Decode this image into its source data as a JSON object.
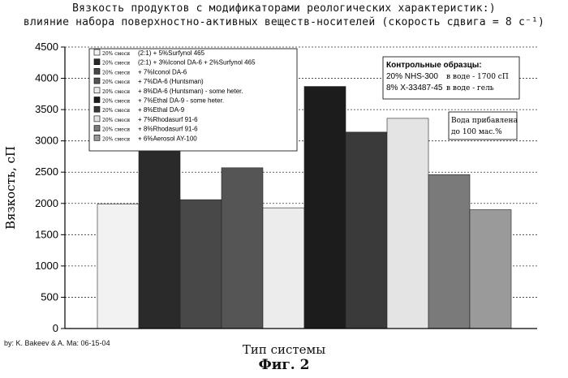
{
  "chart_data": {
    "type": "bar",
    "title_line1": "Вязкость продуктов с модификаторами реологических характеристик:)",
    "title_line2": "влияние набора поверхностно-активных веществ-носителей (скорость сдвига = 8 c⁻¹)",
    "ylabel": "Вязкость, сП",
    "xlabel": "Тип системы",
    "ylim": [
      0,
      4500
    ],
    "yticks": [
      0,
      500,
      1000,
      1500,
      2000,
      2500,
      3000,
      3500,
      4000,
      4500
    ],
    "grid": "dotted horizontal",
    "legend_position": "top-left",
    "series": [
      {
        "prefix": "20% смеси",
        "name": "(2:1) + 5%Surfynol 465",
        "value": 1990,
        "color": "#f2f2f2"
      },
      {
        "prefix": "20% смеси",
        "name": "(2:1) + 3%Iconol DA-6 + 2%Surfynol 465",
        "value": 2830,
        "color": "#2a2a2a"
      },
      {
        "prefix": "20% смеси",
        "name": "+ 7%Iconol DA-6",
        "value": 2060,
        "color": "#484848"
      },
      {
        "prefix": "20% смеси",
        "name": "+ 7%DA-6 (Huntsman)",
        "value": 2570,
        "color": "#555555"
      },
      {
        "prefix": "20% смеси",
        "name": "+ 8%DA-6 (Huntsman) - some heter.",
        "value": 1930,
        "color": "#ececec"
      },
      {
        "prefix": "20% смеси",
        "name": "+ 7%Ethal DA-9 - some heter.",
        "value": 3870,
        "color": "#1c1c1c"
      },
      {
        "prefix": "20% смеси",
        "name": "+ 8%Ethal DA-9",
        "value": 3140,
        "color": "#3a3a3a"
      },
      {
        "prefix": "20% смеси",
        "name": "+ 7%Rhodasurf 91-6",
        "value": 3360,
        "color": "#e4e4e4"
      },
      {
        "prefix": "20% смеси",
        "name": "+ 8%Rhodasurf 91-6",
        "value": 2460,
        "color": "#7a7a7a"
      },
      {
        "prefix": "20% смеси",
        "name": "+ 6%Aerosol AY-100",
        "value": 1900,
        "color": "#9a9a9a"
      }
    ],
    "annotations": {
      "control": {
        "heading": "Контрольные образцы:",
        "line1_main": "20% NHS-300",
        "line1_note": "в воде - 1700 сП",
        "line2_main": "8% X-33487-45",
        "line2_note": "в воде - гель"
      },
      "water": {
        "line1": "Вода прибавлена",
        "line2": "до 100 мас.%"
      }
    }
  },
  "credit": "by: K. Bakeev & A. Ma: 06-15-04",
  "figure_label": "Фиг. 2"
}
